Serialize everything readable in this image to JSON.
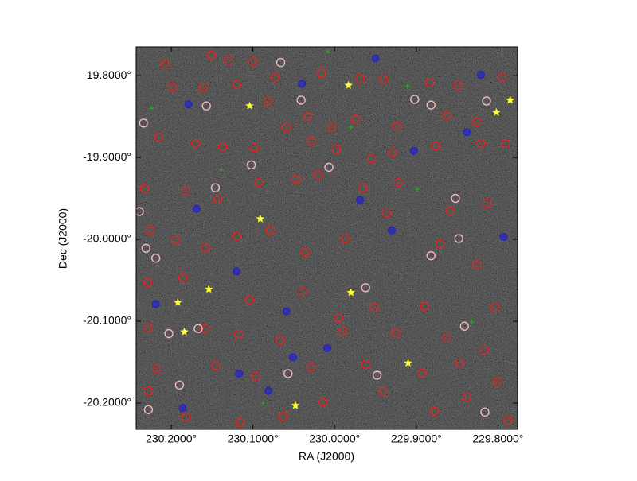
{
  "chart_data": {
    "type": "scatter",
    "xlabel": "RA (J2000)",
    "ylabel": "Dec (J2000)",
    "xlim": [
      230.243,
      229.776
    ],
    "ylim": [
      -20.232,
      -19.765
    ],
    "xticks": [
      {
        "value": 230.2,
        "label": "230.2000°"
      },
      {
        "value": 230.1,
        "label": "230.1000°"
      },
      {
        "value": 230.0,
        "label": "230.0000°"
      },
      {
        "value": 229.9,
        "label": "229.9000°"
      },
      {
        "value": 229.8,
        "label": "229.8000°"
      }
    ],
    "yticks": [
      {
        "value": -19.8,
        "label": "-19.8000°"
      },
      {
        "value": -19.9,
        "label": "-19.9000°"
      },
      {
        "value": -20.0,
        "label": "-20.0000°"
      },
      {
        "value": -20.1,
        "label": "-20.1000°"
      },
      {
        "value": -20.2,
        "label": "-20.2000°"
      }
    ],
    "series": [
      {
        "color": "#e8201c",
        "marker": "ring",
        "x": [
          230.208,
          230.151,
          230.13,
          230.1,
          230.073,
          230.016,
          229.969,
          229.94,
          229.884,
          229.849,
          229.795,
          230.199,
          230.161,
          230.12,
          230.082,
          230.033,
          230.004,
          229.974,
          229.923,
          229.863,
          229.826,
          229.791,
          230.216,
          230.17,
          230.137,
          230.098,
          230.059,
          230.029,
          229.998,
          229.955,
          229.929,
          229.876,
          229.821,
          230.233,
          230.183,
          230.143,
          230.093,
          230.047,
          230.02,
          229.965,
          229.922,
          229.859,
          229.813,
          230.226,
          230.195,
          230.158,
          230.12,
          230.079,
          230.036,
          229.987,
          229.936,
          229.871,
          229.826,
          230.229,
          230.186,
          230.104,
          230.039,
          229.995,
          229.951,
          229.89,
          229.804,
          230.228,
          230.159,
          230.118,
          230.067,
          229.99,
          229.925,
          229.863,
          229.817,
          230.218,
          230.146,
          230.097,
          230.029,
          229.962,
          229.893,
          229.847,
          229.801,
          230.228,
          230.182,
          230.116,
          230.063,
          230.014,
          229.941,
          229.878,
          229.838,
          229.788
        ],
        "values": [
          -19.786,
          -19.775,
          -19.782,
          -19.783,
          -19.802,
          -19.797,
          -19.804,
          -19.805,
          -19.809,
          -19.812,
          -19.802,
          -19.814,
          -19.815,
          -19.811,
          -19.832,
          -19.85,
          -19.863,
          -19.853,
          -19.862,
          -19.849,
          -19.857,
          -19.883,
          -19.875,
          -19.883,
          -19.887,
          -19.888,
          -19.863,
          -19.88,
          -19.89,
          -19.902,
          -19.894,
          -19.886,
          -19.883,
          -19.938,
          -19.941,
          -19.951,
          -19.931,
          -19.927,
          -19.921,
          -19.937,
          -19.931,
          -19.965,
          -19.956,
          -19.989,
          -20.001,
          -20.011,
          -19.996,
          -19.989,
          -20.016,
          -19.999,
          -19.968,
          -20.006,
          -20.031,
          -20.053,
          -20.047,
          -20.074,
          -20.064,
          -20.096,
          -20.083,
          -20.082,
          -20.083,
          -20.108,
          -20.109,
          -20.116,
          -20.123,
          -20.112,
          -20.114,
          -20.12,
          -20.135,
          -20.158,
          -20.154,
          -20.167,
          -20.156,
          -20.153,
          -20.163,
          -20.151,
          -20.174,
          -20.185,
          -20.217,
          -20.224,
          -20.216,
          -20.199,
          -20.186,
          -20.21,
          -20.193,
          -20.221
        ]
      },
      {
        "color": "#f4b8c0",
        "marker": "ring",
        "x": [
          230.234,
          230.157,
          230.066,
          230.041,
          229.902,
          229.882,
          229.814,
          230.239,
          230.146,
          230.102,
          230.007,
          229.852,
          230.231,
          230.219,
          229.882,
          229.848,
          230.167,
          230.203,
          229.841,
          230.057,
          230.19,
          230.228,
          229.948,
          229.816,
          229.962
        ],
        "values": [
          -19.858,
          -19.837,
          -19.784,
          -19.83,
          -19.829,
          -19.836,
          -19.831,
          -19.966,
          -19.937,
          -19.909,
          -19.912,
          -19.95,
          -20.011,
          -20.023,
          -20.02,
          -19.999,
          -20.109,
          -20.115,
          -20.106,
          -20.164,
          -20.178,
          -20.208,
          -20.166,
          -20.211,
          -20.059
        ]
      },
      {
        "color": "#2424c8",
        "marker": "disc",
        "x": [
          230.179,
          230.04,
          229.821,
          229.95,
          230.169,
          229.969,
          229.93,
          230.12,
          229.793,
          230.219,
          230.059,
          230.009,
          230.117,
          230.081,
          230.186,
          229.903,
          229.838,
          230.051
        ],
        "values": [
          -19.835,
          -19.81,
          -19.799,
          -19.779,
          -19.963,
          -19.952,
          -19.989,
          -20.039,
          -19.997,
          -20.079,
          -20.088,
          -20.133,
          -20.164,
          -20.185,
          -20.206,
          -19.892,
          -19.869,
          -20.144
        ]
      },
      {
        "color": "#1fa81f",
        "marker": "plus",
        "x": [
          230.008,
          229.911,
          230.224,
          230.139,
          229.98,
          229.899,
          229.832,
          230.088
        ],
        "values": [
          -19.771,
          -19.813,
          -19.84,
          -19.915,
          -19.863,
          -19.939,
          -20.101,
          -20.2
        ]
      },
      {
        "color": "#ffff33",
        "marker": "star",
        "x": [
          229.983,
          230.104,
          229.802,
          229.785,
          230.091,
          230.154,
          229.98,
          230.192,
          230.184,
          229.91,
          230.048
        ],
        "values": [
          -19.812,
          -19.837,
          -19.845,
          -19.83,
          -19.975,
          -20.061,
          -20.065,
          -20.077,
          -20.113,
          -20.151,
          -20.203
        ]
      }
    ]
  }
}
